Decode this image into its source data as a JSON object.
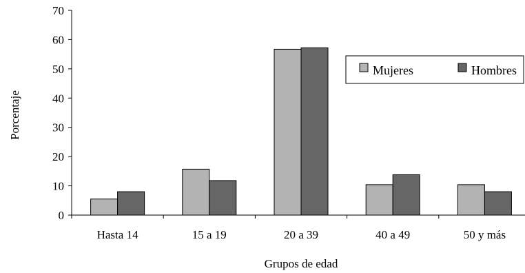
{
  "chart_data": {
    "type": "bar",
    "title": "",
    "xlabel": "Grupos de edad",
    "ylabel": "Porcentaje",
    "categories": [
      "Hasta 14",
      "15 a 19",
      "20 a 39",
      "40 a 49",
      "50 y más"
    ],
    "series": [
      {
        "name": "Mujeres",
        "values": [
          5.5,
          15.7,
          56.7,
          10.4,
          10.4
        ],
        "color": "#b3b3b3"
      },
      {
        "name": "Hombres",
        "values": [
          8.0,
          11.8,
          57.2,
          13.8,
          8.0
        ],
        "color": "#666666"
      }
    ],
    "ylim": [
      0,
      70
    ],
    "yticks": [
      "0",
      "10",
      "20",
      "30",
      "40",
      "50",
      "60",
      "70"
    ],
    "grid": false,
    "legend_position": "top-right"
  }
}
